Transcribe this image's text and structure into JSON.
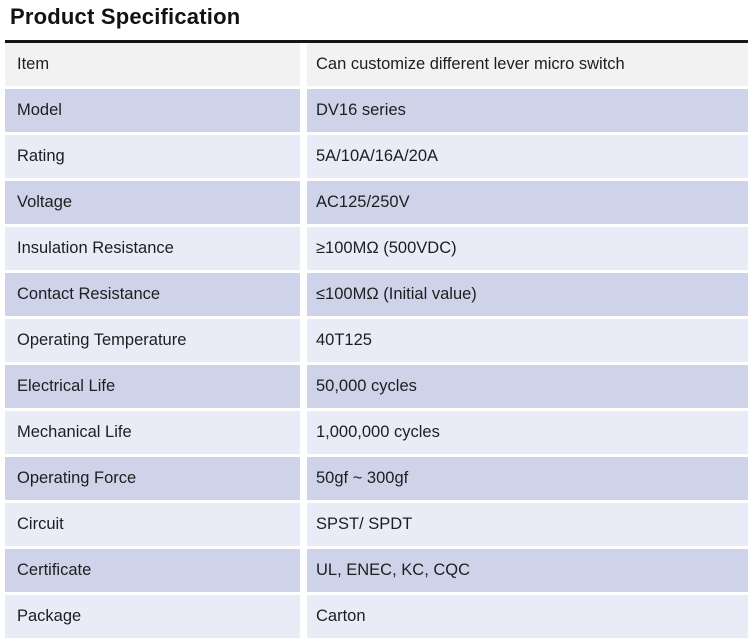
{
  "page": {
    "title": "Product Specification"
  },
  "theme": {
    "header_row_bg": "#f2f2f3",
    "row_dark_bg": "#cfd3e9",
    "row_light_bg": "#e9ebf6",
    "table_top_border": "#161616",
    "text_color": "#1e1e20"
  },
  "table": {
    "rows": [
      {
        "label": "Item",
        "value": "Can customize different lever micro switch"
      },
      {
        "label": "Model",
        "value": "DV16 series"
      },
      {
        "label": "Rating",
        "value": "5A/10A/16A/20A"
      },
      {
        "label": "Voltage",
        "value": "AC125/250V"
      },
      {
        "label": "Insulation Resistance",
        "value": "≥100MΩ (500VDC)"
      },
      {
        "label": "Contact Resistance",
        "value": "≤100MΩ (Initial value)"
      },
      {
        "label": "Operating Temperature",
        "value": "40T125"
      },
      {
        "label": "Electrical Life",
        "value": "50,000 cycles"
      },
      {
        "label": "Mechanical Life",
        "value": "1,000,000 cycles"
      },
      {
        "label": "Operating Force",
        "value": "50gf ~ 300gf"
      },
      {
        "label": "Circuit",
        "value": "SPST/ SPDT"
      },
      {
        "label": "Certificate",
        "value": "UL, ENEC, KC, CQC"
      },
      {
        "label": "Package",
        "value": "Carton"
      }
    ]
  }
}
